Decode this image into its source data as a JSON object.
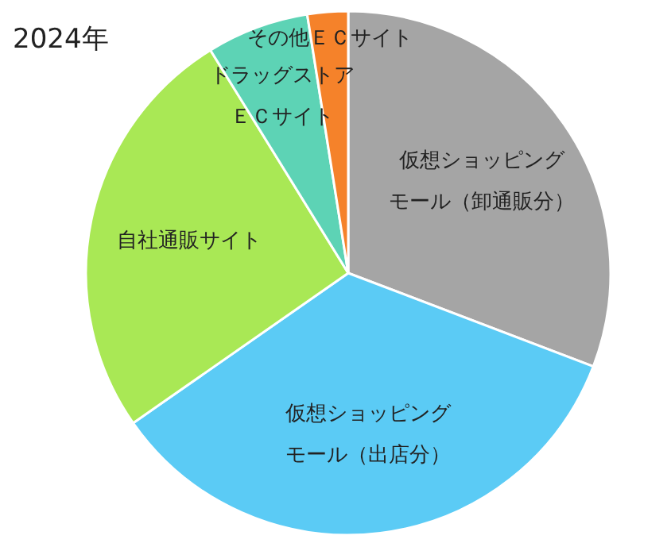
{
  "chart_data": {
    "type": "pie",
    "title": "2024年",
    "categories": [
      "仮想ショッピングモール（卸通販分）",
      "仮想ショッピングモール（出店分）",
      "自社通販サイト",
      "ドラッグストアＥＣサイト",
      "その他ＥＣサイト"
    ],
    "values": [
      30.8,
      34.5,
      25.9,
      6.3,
      2.5
    ],
    "colors": [
      "#a5a5a5",
      "#5bcbf5",
      "#a9e855",
      "#5dd3b5",
      "#f5822a"
    ]
  }
}
